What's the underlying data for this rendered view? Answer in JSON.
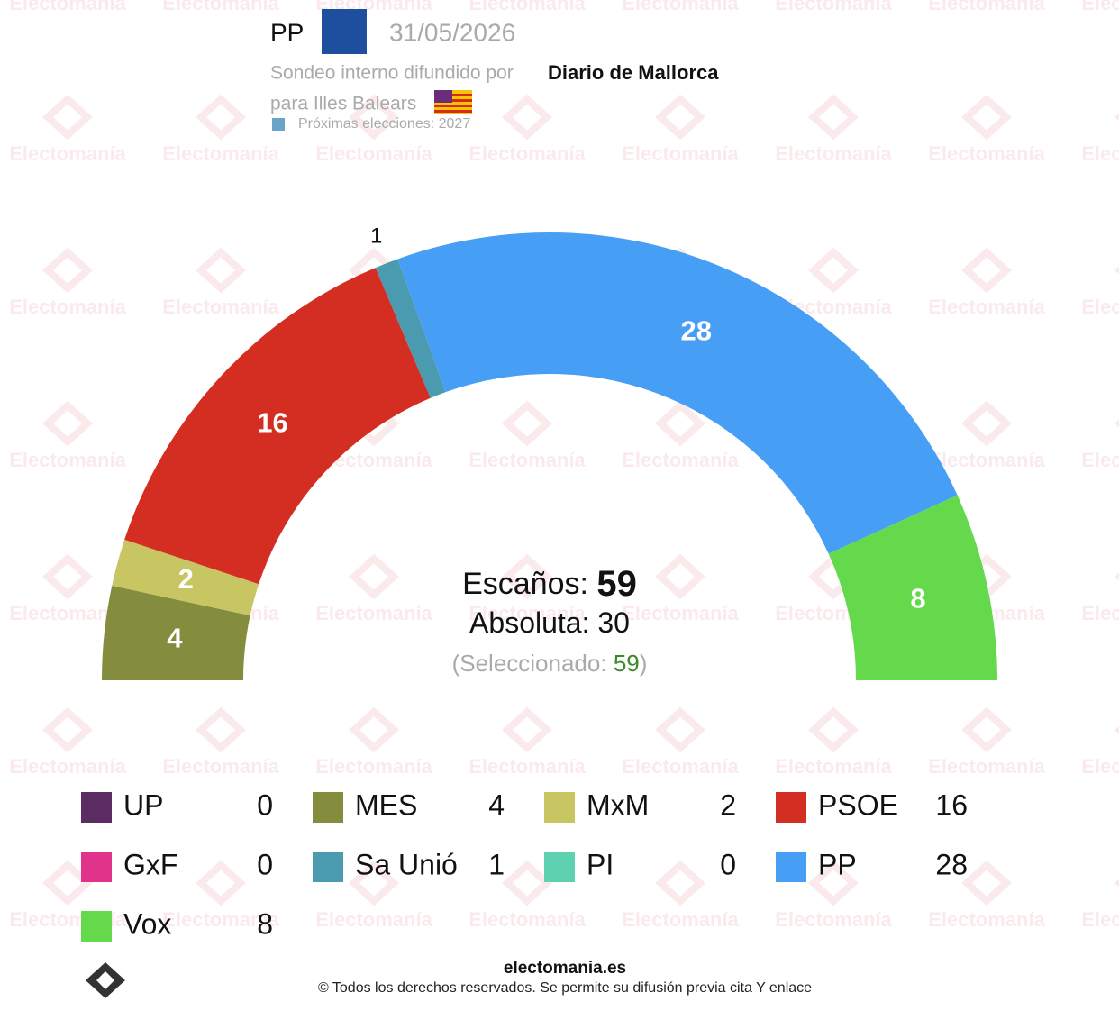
{
  "header": {
    "party": "PP",
    "date": "31/05/2026",
    "source_prefix": "Sondeo interno difundido por",
    "source": "Diario de Mallorca",
    "region": "para Illes Balears",
    "next_elections": "Próximas elecciones: 2027"
  },
  "watermark": "Electomanía",
  "chart_data": {
    "type": "hemicycle",
    "categories": [
      "UP",
      "MES",
      "MxM",
      "PSOE",
      "GxF",
      "Sa Unió",
      "PI",
      "PP",
      "Vox"
    ],
    "values": [
      0,
      4,
      2,
      16,
      0,
      1,
      0,
      28,
      8
    ],
    "colors": [
      "#5b2d63",
      "#848c3e",
      "#c8c662",
      "#d42d21",
      "#e2338a",
      "#4a9bb0",
      "#5ed1b0",
      "#479ef5",
      "#64d94c"
    ],
    "total_label": "Escaños:",
    "total": 59,
    "majority_label": "Absoluta:",
    "majority": 30,
    "selected_label": "(Seleccionado:",
    "selected": 59,
    "selected_close": ")"
  },
  "footer": {
    "site": "electomania.es",
    "copyright": "© Todos los derechos reservados. Se permite su difusión previa cita Y enlace"
  }
}
